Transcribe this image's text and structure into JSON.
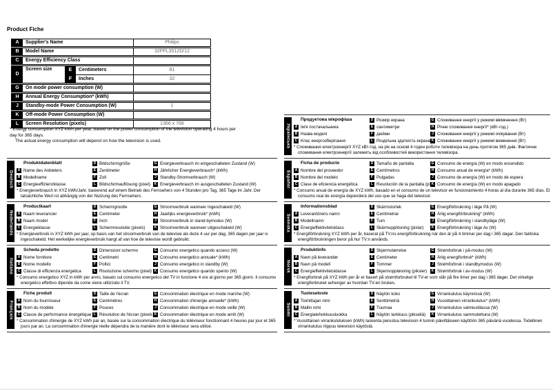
{
  "page": {
    "title": "Product Fiche"
  },
  "table": {
    "rows": [
      {
        "k": "A",
        "label": "Supplier's Name",
        "value": "Philips"
      },
      {
        "k": "B",
        "label": "Model Name",
        "value": "32PFL3512D/12"
      },
      {
        "k": "C",
        "label": "Energy Efficiency Class",
        "value": ""
      },
      {
        "k": "D",
        "label": "Screen size",
        "sub": [
          {
            "k": "E",
            "label": "Centimeters",
            "value": "81"
          },
          {
            "k": "F",
            "label": "Inches",
            "value": "32"
          }
        ]
      },
      {
        "k": "G",
        "label": "On mode power consumption (W)",
        "value": ""
      },
      {
        "k": "H",
        "label": "Annual Energy Consumption* (kWh)",
        "value": ""
      },
      {
        "k": "J",
        "label": "Standby-mode Power Consumption (W)",
        "value": "1"
      },
      {
        "k": "K",
        "label": "Off-mode Power Consumption (W)",
        "value": ""
      },
      {
        "k": "L",
        "label": "Screen Resolution (pixels)",
        "value": "1366 x 768"
      }
    ]
  },
  "footnote": {
    "line1": "* Energy consumption XYZ kWh per year, based on the power consumption of the television operating 4 hours per day for 365 days.",
    "line2": "The actual energy consumption will depend on how the television is used."
  },
  "sections": {
    "left": [
      {
        "id": "deutsch",
        "language": "Deutsch",
        "title": "Produktdatenblatt",
        "col1": [
          {
            "k": "A",
            "t": "Name des Anbieters"
          },
          {
            "k": "B",
            "t": "Modellname"
          },
          {
            "k": "C",
            "t": "Energieeffizienzklasse"
          }
        ],
        "col2": [
          {
            "k": "D",
            "t": "Bildschirmgröße"
          },
          {
            "k": "E",
            "t": "Zentimeter"
          },
          {
            "k": "F",
            "t": "Zoll"
          },
          {
            "k": "L",
            "t": "Bildschirmauflösung (pixel)"
          }
        ],
        "col3": [
          {
            "k": "G",
            "t": "Energieverbrauch im eingeschalteten Zustand (W)"
          },
          {
            "k": "H",
            "t": "Jährlicher Energieverbrauch* (kWh)"
          },
          {
            "k": "J",
            "t": "Standby-Stromverbrauch (W)"
          },
          {
            "k": "K",
            "t": "Energieverbrauch im ausgeschalteten Zustand (W)"
          }
        ],
        "footnote": "* Energieverbrauch in XYZ kWh/Jahr, basierend auf einem Betrieb des Fernsehers von 4 Stunden pro Tag, 365 Tage im Jahr. Der tatsächliche Wert ist abhängig von der Nutzung des Fernsehers."
      },
      {
        "id": "nederlands",
        "language": "Nederlands",
        "title": "Productkaart",
        "col1": [
          {
            "k": "A",
            "t": "Naam leverancier"
          },
          {
            "k": "B",
            "t": "Naam model"
          },
          {
            "k": "C",
            "t": "Energieklasse"
          }
        ],
        "col2": [
          {
            "k": "D",
            "t": "Schermgrootte"
          },
          {
            "k": "E",
            "t": "Centimeter"
          },
          {
            "k": "F",
            "t": "Inch"
          },
          {
            "k": "L",
            "t": "Schermresolutie (pixels)"
          }
        ],
        "col3": [
          {
            "k": "G",
            "t": "Stroomverbruik wanneer ingeschakeld (W)"
          },
          {
            "k": "H",
            "t": "Jaarlijks energieverbruik* (kWh)"
          },
          {
            "k": "J",
            "t": "Stroomverbruik in stand-bymodus (W)"
          },
          {
            "k": "K",
            "t": "Stroomverbruik wanneer uitgeschakeld (W)"
          }
        ],
        "footnote": "* Energieverbruik in XYZ kWh per jaar, op basis van het stroomverbruik van de televisie als deze 4 uur per dag, 365 dagen per jaar is ingeschakeld. Het werkelijke energieverbruik hangt af van hoe de televisie wordt gebruikt."
      },
      {
        "id": "italiano",
        "language": "Italiano",
        "title": "Scheda prodotto",
        "col1": [
          {
            "k": "A",
            "t": "Nome fornitore"
          },
          {
            "k": "B",
            "t": "Nome modello"
          },
          {
            "k": "C",
            "t": "Classe di efficienza energetica"
          }
        ],
        "col2": [
          {
            "k": "D",
            "t": "Dimensioni schermo"
          },
          {
            "k": "E",
            "t": "Centimetri"
          },
          {
            "k": "F",
            "t": "Pollici"
          },
          {
            "k": "L",
            "t": "Risoluzione schermo (pixel)"
          }
        ],
        "col3": [
          {
            "k": "G",
            "t": "Consumo energetico quando acceso (W)"
          },
          {
            "k": "H",
            "t": "Consumo energetico annuale* (kWh)"
          },
          {
            "k": "J",
            "t": "Consumo energetico in standby (W)"
          },
          {
            "k": "K",
            "t": "Consumo energetico quando spento (W)"
          }
        ],
        "footnote": "* Consumo energetico XYZ in kWh per anno, basato sul consumo energetico del TV in funzione 4 ore al giorno per 365 giorni. Il consumo energetico effettivo dipende da come viene utilizzato il TV."
      },
      {
        "id": "francais",
        "language": "Français",
        "title": "Fiche produit",
        "col1": [
          {
            "k": "A",
            "t": "Nom du fournisseur"
          },
          {
            "k": "B",
            "t": "Nom du modèle"
          },
          {
            "k": "C",
            "t": "Classe de performance énergétique"
          }
        ],
        "col2": [
          {
            "k": "D",
            "t": "Taille de l'écran"
          },
          {
            "k": "E",
            "t": "Centimètres"
          },
          {
            "k": "F",
            "t": "Pouces"
          },
          {
            "k": "L",
            "t": "Résolution de l'écran (pixels)"
          }
        ],
        "col3": [
          {
            "k": "G",
            "t": "Consommation électrique en mode marche (W)"
          },
          {
            "k": "H",
            "t": "Consommation d'énergie annuelle* (kWh)"
          },
          {
            "k": "J",
            "t": "Consommation électrique en mode veille (W)"
          },
          {
            "k": "K",
            "t": "Consommation électrique en mode arrêt (W)"
          }
        ],
        "footnote": "* Consommation d'énergie de XYZ kWh par an, basée sur la consommation électrique du téléviseur fonctionnant 4 heures par jour et 365 jours par an. La consommation d'énergie réelle dépendra de la manière dont le téléviseur sera utilisé."
      }
    ],
    "right": [
      {
        "id": "ukrainska",
        "language": "Українська",
        "title": "Продуктова мікрофіша",
        "col1": [
          {
            "k": "A",
            "t": "Ім'я постачальника"
          },
          {
            "k": "B",
            "t": "Назва моделі"
          },
          {
            "k": "C",
            "t": "Клас енергозберігання"
          }
        ],
        "col2": [
          {
            "k": "D",
            "t": "Розмір екрана"
          },
          {
            "k": "E",
            "t": "сантиметри"
          },
          {
            "k": "F",
            "t": "дюйми"
          },
          {
            "k": "L",
            "t": "Роздільна здатність екрана (пікселі)"
          }
        ],
        "col3": [
          {
            "k": "G",
            "t": "Споживання енергії у режимі ввімкнення (Вт)"
          },
          {
            "k": "H",
            "t": "Річне споживання енергії* (кВт-год.)"
          },
          {
            "k": "J",
            "t": "Споживання енергії у режимі очікування (Вт)"
          },
          {
            "k": "K",
            "t": "Споживання енергії у режимі вимкнення (Вт)"
          }
        ],
        "footnote": "* Споживання електроенергії XYZ кВт-год. на рік на основі 4 годин роботи телевізора на день протягом 365 днів. Фактичне споживання електроенергії залежить від особливостей використання телевізора."
      },
      {
        "id": "espanol",
        "language": "Español",
        "title": "Ficha de producto",
        "col1": [
          {
            "k": "A",
            "t": "Nombre del proveedor"
          },
          {
            "k": "B",
            "t": "Nombre del modelo"
          },
          {
            "k": "C",
            "t": "Clase de eficiencia energética"
          }
        ],
        "col2": [
          {
            "k": "D",
            "t": "Tamaño de pantalla"
          },
          {
            "k": "E",
            "t": "Centímetros"
          },
          {
            "k": "F",
            "t": "Pulgadas"
          },
          {
            "k": "L",
            "t": "Resolución de la pantalla (píxeles)"
          }
        ],
        "col3": [
          {
            "k": "G",
            "t": "Consumo de energía (W) en modo encendido"
          },
          {
            "k": "H",
            "t": "Consumo anual de energía* (kWh)"
          },
          {
            "k": "J",
            "t": "Consumo de energía (W) en modo de espera"
          },
          {
            "k": "K",
            "t": "Consumo de energía (W) en modo apagado"
          }
        ],
        "footnote": "* Consumo anual de energía de XYZ kWh, basado en el consumo de un televisor en funcionamiento 4 horas al día durante 365 días. El consumo real de energía dependerá del uso que se haga del televisor."
      },
      {
        "id": "svenska",
        "language": "Svenska",
        "title": "Informationsblad",
        "col1": [
          {
            "k": "A",
            "t": "Leverantörens namn"
          },
          {
            "k": "B",
            "t": "Modellnamn"
          },
          {
            "k": "C",
            "t": "Energieffektivitetsklass"
          }
        ],
        "col2": [
          {
            "k": "D",
            "t": "Skärmstorlek"
          },
          {
            "k": "E",
            "t": "Centimetrar"
          },
          {
            "k": "F",
            "t": "Tum"
          },
          {
            "k": "L",
            "t": "Skärmupplösning (pixlar)"
          }
        ],
        "col3": [
          {
            "k": "G",
            "t": "Energiförbrukning i läge På (W)"
          },
          {
            "k": "H",
            "t": "Årlig energiförbrukning* (kWh)"
          },
          {
            "k": "J",
            "t": "Energiförbrukning i standbyläge (W)"
          },
          {
            "k": "K",
            "t": "Energiförbrukning i läge Av (W)"
          }
        ],
        "footnote": "* Energiförbrukning XYZ kWh per år, baserat på TV:ns energiförbrukning när den är på 4 timmar per dag i 365 dagar. Den faktiska energiförbrukningen beror på hur TV:n används."
      },
      {
        "id": "norsk",
        "language": "Norsk",
        "title": "Produktinfo",
        "col1": [
          {
            "k": "A",
            "t": "Navn på leverandør"
          },
          {
            "k": "B",
            "t": "Navn på modell"
          },
          {
            "k": "C",
            "t": "Energieffektivitetsklasse"
          }
        ],
        "col2": [
          {
            "k": "D",
            "t": "Skjermstørrelse"
          },
          {
            "k": "E",
            "t": "Centimeter"
          },
          {
            "k": "F",
            "t": "Tommer"
          },
          {
            "k": "L",
            "t": "Skjermoppløsning (piksler)"
          }
        ],
        "col3": [
          {
            "k": "G",
            "t": "Strømforbruk i på-modus (W)"
          },
          {
            "k": "H",
            "t": "Årlig energiforbruk* (kWh)"
          },
          {
            "k": "J",
            "t": "Strømforbruk i standbymodus (W)"
          },
          {
            "k": "K",
            "t": "Strømforbruk i av-modus (W)"
          }
        ],
        "footnote": "* Energiforbruk på XYZ kWh per år er basert på strømforbruket til TV-er som står på fire timer per dag i 365 dager. Det virkelige energiforbruket avhenger av hvordan TV-en brukes."
      },
      {
        "id": "suomi",
        "language": "Suomi",
        "title": "Tuoteseloste",
        "col1": [
          {
            "k": "A",
            "t": "Toimittajan nimi"
          },
          {
            "k": "B",
            "t": "Mallin nimi"
          },
          {
            "k": "C",
            "t": "Energiatehokkuusluokka"
          }
        ],
        "col2": [
          {
            "k": "D",
            "t": "Näytön koko"
          },
          {
            "k": "E",
            "t": "Senttimetriä"
          },
          {
            "k": "F",
            "t": "Tuumaa"
          },
          {
            "k": "L",
            "t": "Näytön tarkkuus (pikseliä)"
          }
        ],
        "col3": [
          {
            "k": "G",
            "t": "Virrankulutus käynnissä (W)"
          },
          {
            "k": "H",
            "t": "Vuosittainen virrankulutus* (kWh)"
          },
          {
            "k": "J",
            "t": "Virrankulutus valmiustilassa (W)"
          },
          {
            "k": "K",
            "t": "Virrankulutus sammutettuna (W)"
          }
        ],
        "footnote": "* Vuosittaisen virrankulutuksen (kWh) laskenta perustuu television 4 tunnin päivittäiseen käyttöön 365 päivänä vuodessa. Todellinen virrankulutus riippuu television käytöstä."
      }
    ]
  }
}
